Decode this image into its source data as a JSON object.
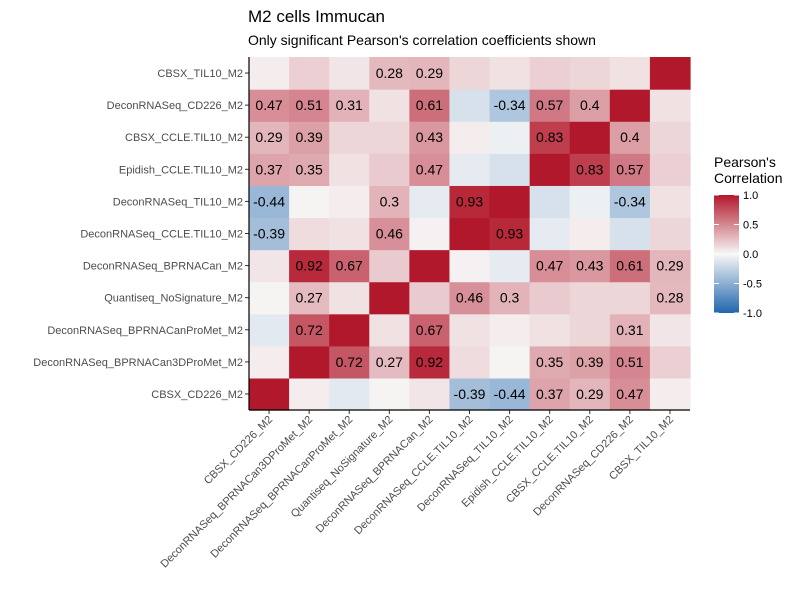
{
  "chart_data": {
    "type": "heatmap",
    "title": "M2 cells Immucan",
    "subtitle": "Only significant Pearson's correlation coefficients shown",
    "categories": [
      "CBSX_CD226_M2",
      "DeconRNASeq_BPRNACan3DProMet_M2",
      "DeconRNASeq_BPRNACanProMet_M2",
      "Quantiseq_NoSignature_M2",
      "DeconRNASeq_BPRNACan_M2",
      "DeconRNASeq_CCLE.TIL10_M2",
      "DeconRNASeq_TIL10_M2",
      "Epidish_CCLE.TIL10_M2",
      "CBSX_CCLE.TIL10_M2",
      "DeconRNASeq_CD226_M2",
      "CBSX_TIL10_M2"
    ],
    "values": [
      [
        1.0,
        0.05,
        -0.1,
        0.02,
        0.08,
        -0.39,
        -0.44,
        0.37,
        0.29,
        0.47,
        0.05
      ],
      [
        0.05,
        1.0,
        0.72,
        0.27,
        0.92,
        0.12,
        0.02,
        0.35,
        0.39,
        0.51,
        0.18
      ],
      [
        -0.1,
        0.72,
        1.0,
        0.1,
        0.67,
        0.1,
        0.05,
        0.1,
        0.15,
        0.31,
        0.08
      ],
      [
        0.02,
        0.27,
        0.1,
        1.0,
        0.2,
        0.46,
        0.3,
        0.2,
        0.15,
        0.15,
        0.28
      ],
      [
        0.08,
        0.92,
        0.67,
        0.2,
        1.0,
        0.03,
        -0.08,
        0.47,
        0.43,
        0.61,
        0.29
      ],
      [
        -0.39,
        0.12,
        0.1,
        0.46,
        0.03,
        1.0,
        0.93,
        -0.08,
        0.05,
        -0.15,
        0.15
      ],
      [
        -0.44,
        0.02,
        0.05,
        0.3,
        -0.08,
        0.93,
        1.0,
        -0.15,
        -0.05,
        -0.34,
        0.1
      ],
      [
        0.37,
        0.35,
        0.1,
        0.2,
        0.47,
        -0.08,
        -0.15,
        1.0,
        0.83,
        0.57,
        0.18
      ],
      [
        0.29,
        0.39,
        0.15,
        0.15,
        0.43,
        0.05,
        -0.05,
        0.83,
        1.0,
        0.4,
        0.15
      ],
      [
        0.47,
        0.51,
        0.31,
        0.1,
        0.61,
        -0.15,
        -0.34,
        0.57,
        0.4,
        1.0,
        0.1
      ],
      [
        0.05,
        0.18,
        0.08,
        0.28,
        0.29,
        0.15,
        0.1,
        0.18,
        0.15,
        0.1,
        1.0
      ]
    ],
    "cell_labels": [
      [
        null,
        null,
        null,
        null,
        null,
        "-0.39",
        "-0.44",
        "0.37",
        "0.29",
        "0.47",
        null
      ],
      [
        null,
        null,
        "0.72",
        "0.27",
        "0.92",
        null,
        null,
        "0.35",
        "0.39",
        "0.51",
        null
      ],
      [
        null,
        "0.72",
        null,
        null,
        "0.67",
        null,
        null,
        null,
        null,
        "0.31",
        null
      ],
      [
        null,
        "0.27",
        null,
        null,
        null,
        "0.46",
        "0.3",
        null,
        null,
        null,
        "0.28"
      ],
      [
        null,
        "0.92",
        "0.67",
        null,
        null,
        null,
        null,
        "0.47",
        "0.43",
        "0.61",
        "0.29"
      ],
      [
        "-0.39",
        null,
        null,
        "0.46",
        null,
        null,
        "0.93",
        null,
        null,
        null,
        null
      ],
      [
        "-0.44",
        null,
        null,
        "0.3",
        null,
        "0.93",
        null,
        null,
        null,
        "-0.34",
        null
      ],
      [
        "0.37",
        "0.35",
        null,
        null,
        "0.47",
        null,
        null,
        null,
        "0.83",
        "0.57",
        null
      ],
      [
        "0.29",
        "0.39",
        null,
        null,
        "0.43",
        null,
        null,
        "0.83",
        null,
        "0.4",
        null
      ],
      [
        "0.47",
        "0.51",
        "0.31",
        null,
        "0.61",
        null,
        "-0.34",
        "0.57",
        "0.4",
        null,
        null
      ],
      [
        null,
        null,
        null,
        "0.28",
        "0.29",
        null,
        null,
        null,
        null,
        null,
        null
      ]
    ],
    "legend": {
      "title_lines": [
        "Pearson's",
        "Correlation"
      ],
      "ticks": [
        "1.0",
        "0.5",
        "0.0",
        "-0.5",
        "-1.0"
      ],
      "range": [
        -1,
        1
      ],
      "placement": "right"
    },
    "colors": {
      "low": "#2166ac",
      "mid": "#f7f7f7",
      "high": "#b2182b"
    },
    "grid": false
  }
}
